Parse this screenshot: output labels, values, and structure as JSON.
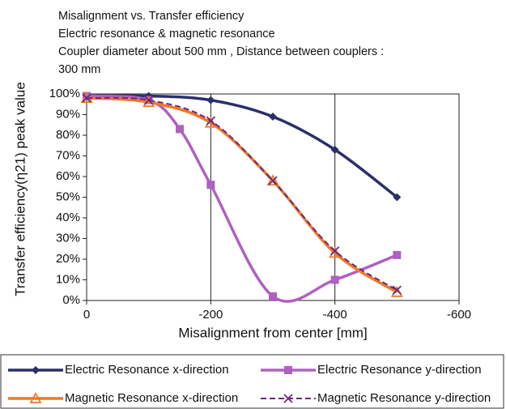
{
  "chart_data": {
    "type": "line",
    "title": [
      "Misalignment vs. Transfer efficiency",
      "Electric resonance & magnetic resonance",
      "Coupler diameter about 500 mm , Distance between couplers :",
      "300 mm"
    ],
    "x_label": "Misalignment from center [mm]",
    "y_label": "Transfer efficiency(η21) peak value",
    "xlim": [
      0,
      -600
    ],
    "xticks": [
      0,
      -200,
      -400,
      -600
    ],
    "ylim": [
      0,
      100
    ],
    "yticks": [
      {
        "value": 0,
        "label": "0%"
      },
      {
        "value": 10,
        "label": "10%"
      },
      {
        "value": 20,
        "label": "20%"
      },
      {
        "value": 30,
        "label": "30%"
      },
      {
        "value": 40,
        "label": "40%"
      },
      {
        "value": 50,
        "label": "50%"
      },
      {
        "value": 60,
        "label": "60%"
      },
      {
        "value": 70,
        "label": "70%"
      },
      {
        "value": 80,
        "label": "80%"
      },
      {
        "value": 90,
        "label": "90%"
      },
      {
        "value": 100,
        "label": "100%"
      }
    ],
    "grid": "x",
    "legend": "bottom",
    "series": [
      {
        "name": "Electric Resonance x-direction",
        "color": "#2b2f6b",
        "marker": "diamond",
        "dash": false,
        "smooth": true,
        "x": [
          0,
          -100,
          -200,
          -300,
          -400,
          -500
        ],
        "values": [
          99,
          99,
          97,
          89,
          73,
          50
        ]
      },
      {
        "name": "Electric Resonance y-direction",
        "color": "#b060c0",
        "marker": "square",
        "dash": false,
        "smooth": true,
        "x": [
          0,
          -100,
          -150,
          -200,
          -300,
          -400,
          -500
        ],
        "values": [
          99,
          97,
          83,
          56,
          2,
          10,
          22
        ]
      },
      {
        "name": "Magnetic Resonance x-direction",
        "color": "#f07828",
        "marker": "triangle",
        "dash": false,
        "smooth": true,
        "x": [
          0,
          -100,
          -200,
          -300,
          -400,
          -500
        ],
        "values": [
          98,
          96,
          86,
          58,
          23,
          4
        ]
      },
      {
        "name": "Magnetic Resonance y-direction",
        "color": "#6a2a80",
        "marker": "cross",
        "dash": true,
        "smooth": true,
        "x": [
          0,
          -100,
          -200,
          -300,
          -400,
          -500
        ],
        "values": [
          98,
          97,
          87,
          58,
          24,
          5
        ]
      }
    ]
  }
}
